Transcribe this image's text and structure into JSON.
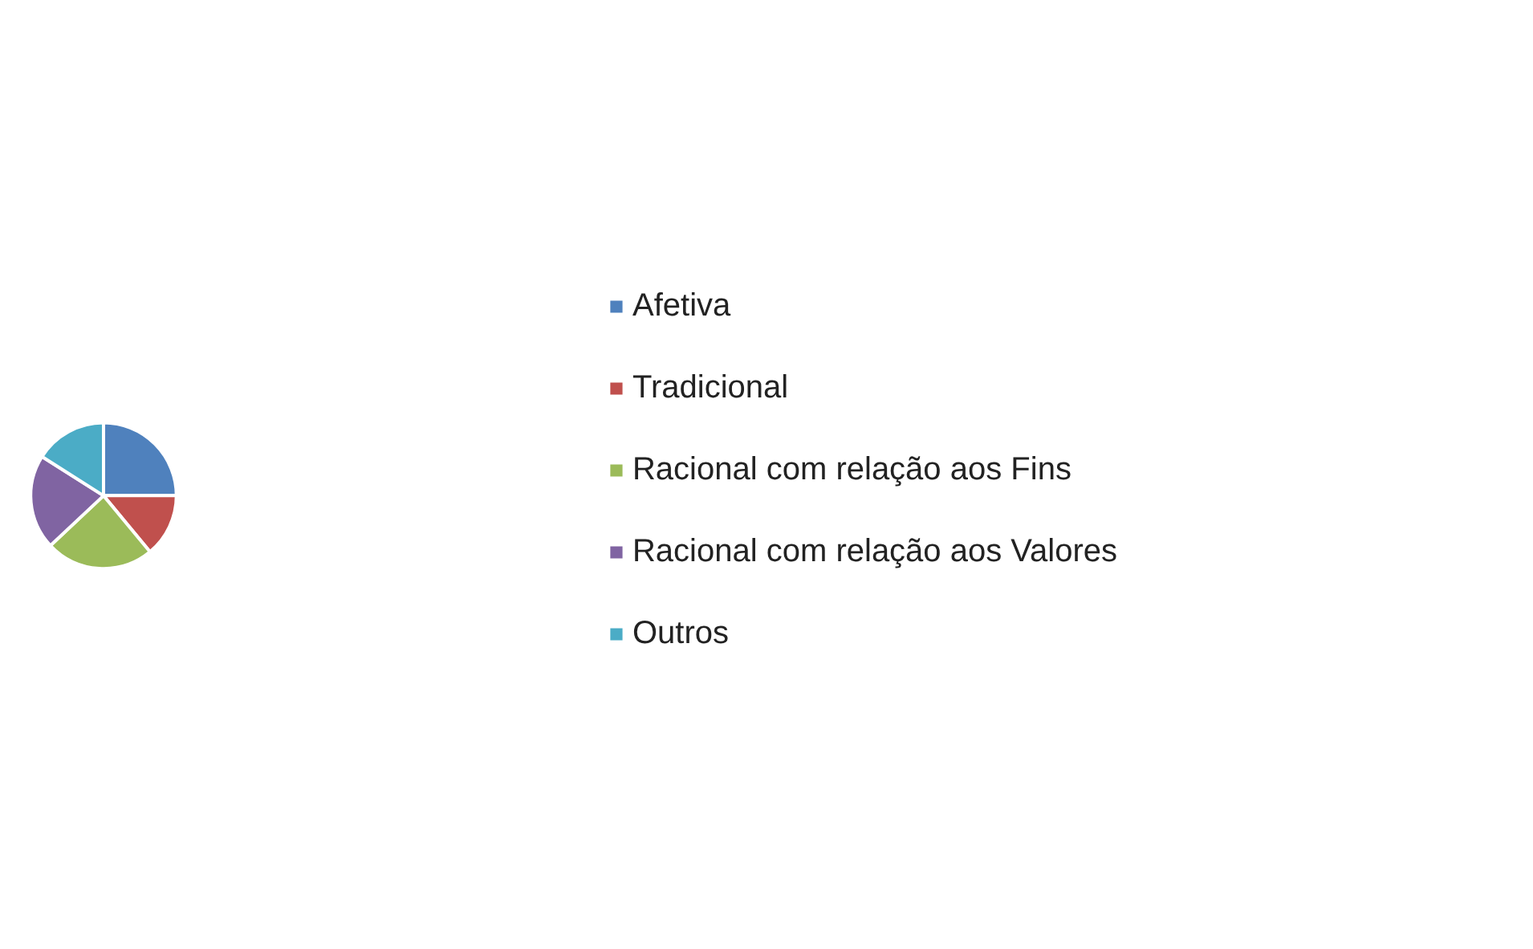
{
  "chart_data": {
    "type": "pie",
    "categories": [
      "Afetiva",
      "Tradicional",
      "Racional com relação aos Fins",
      "Racional com relação aos Valores",
      "Outros"
    ],
    "values": [
      25,
      14,
      24,
      21,
      16
    ],
    "colors": [
      "#4f81bd",
      "#c0504d",
      "#9bbb59",
      "#8064a2",
      "#4bacc6"
    ],
    "legend": "right"
  }
}
